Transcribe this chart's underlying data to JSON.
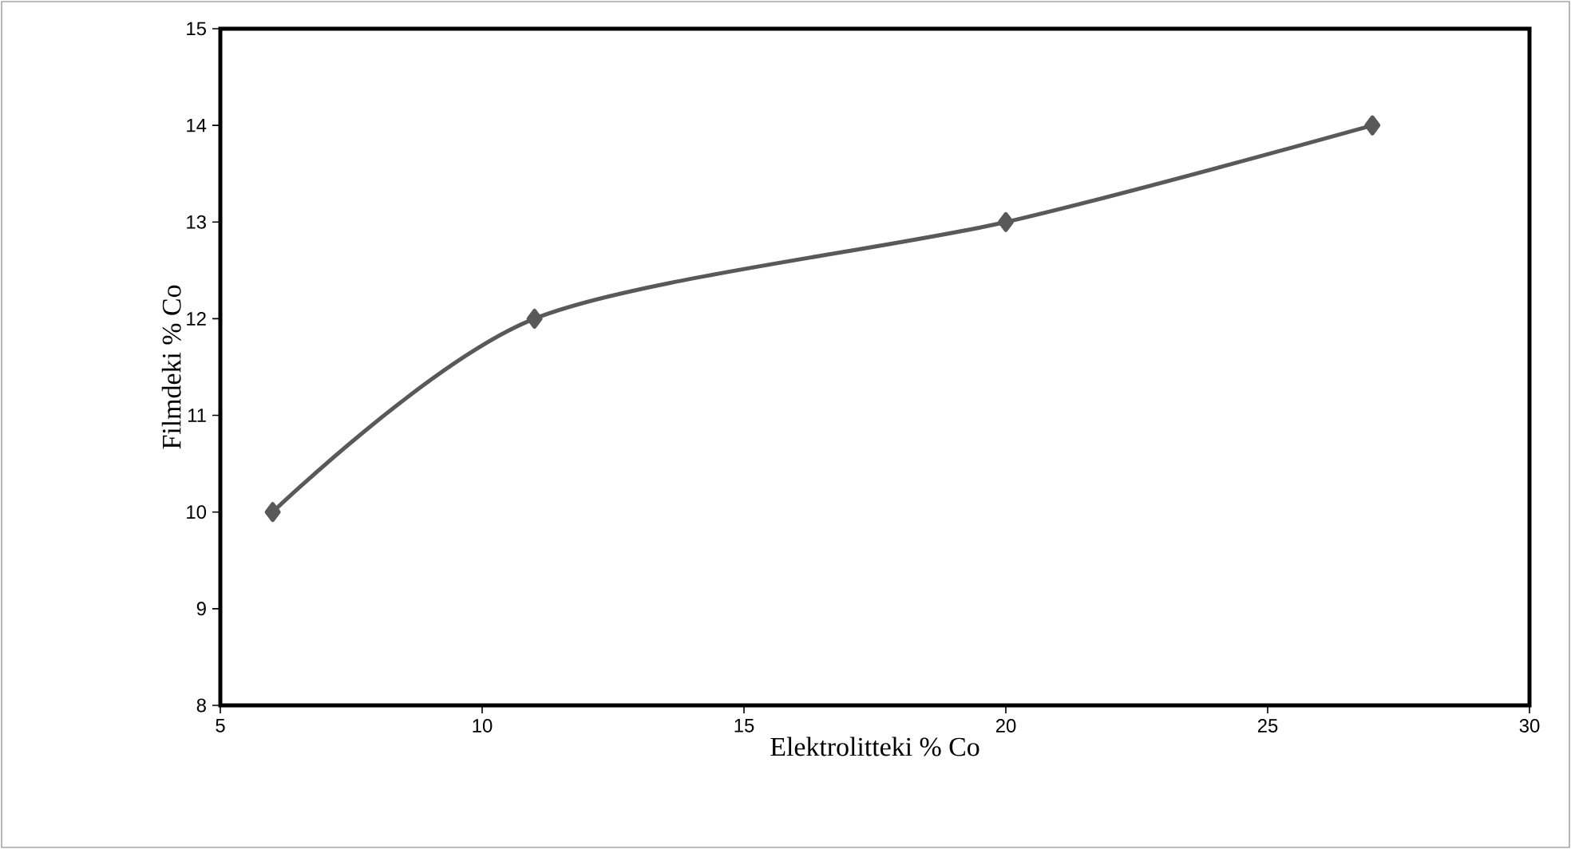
{
  "chart_data": {
    "type": "line",
    "xlabel": "Elektrolitteki % Co",
    "ylabel": "Filmdeki % Co",
    "x": [
      6,
      11,
      20,
      27
    ],
    "values": [
      10,
      12,
      13,
      14
    ],
    "color": "#595959",
    "xlim": [
      5,
      30
    ],
    "ylim": [
      8,
      15
    ],
    "xticks": [
      5,
      10,
      15,
      20,
      25,
      30
    ],
    "yticks": [
      8,
      9,
      10,
      11,
      12,
      13,
      14,
      15
    ],
    "marker": "diamond",
    "line_style": "solid"
  }
}
